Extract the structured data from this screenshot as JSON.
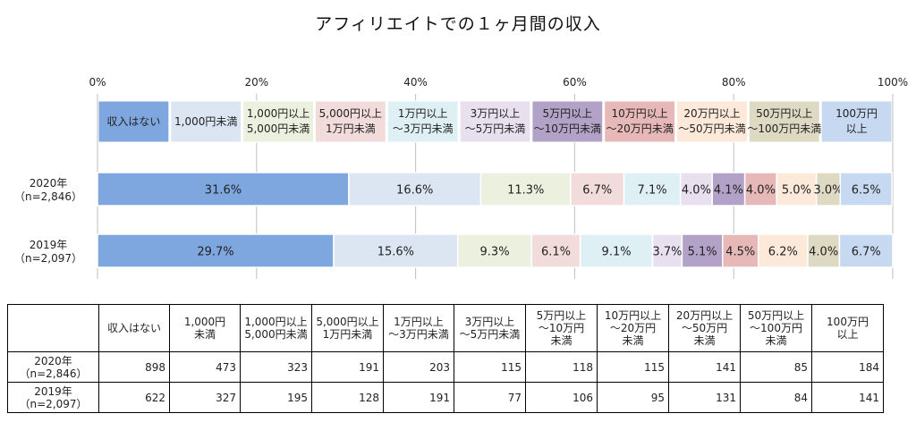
{
  "chart_data": {
    "type": "bar",
    "orientation": "horizontal",
    "stacked": "percent",
    "title": "アフィリエイトでの１ヶ月間の収入",
    "xaxis_ticks": [
      "0%",
      "20%",
      "40%",
      "60%",
      "80%",
      "100%"
    ],
    "xlim": [
      0,
      100
    ],
    "grid": true,
    "legend_position": "top",
    "series": [
      {
        "name": "収入はない",
        "label_lines": [
          "収入はない"
        ],
        "color": "#7fa7df",
        "values": [
          31.6,
          29.7
        ]
      },
      {
        "name": "1,000円未満",
        "label_lines": [
          "1,000円未満"
        ],
        "color": "#dce6f3",
        "values": [
          16.6,
          15.6
        ]
      },
      {
        "name": "1,000円以上5,000円未満",
        "label_lines": [
          "1,000円以上",
          "5,000円未満"
        ],
        "color": "#ebf1de",
        "values": [
          11.3,
          9.3
        ]
      },
      {
        "name": "5,000円以上1万円未満",
        "label_lines": [
          "5,000円以上",
          "1万円未満"
        ],
        "color": "#f2dcdb",
        "values": [
          6.7,
          6.1
        ]
      },
      {
        "name": "1万円以上～3万円未満",
        "label_lines": [
          "1万円以上",
          "～3万円未満"
        ],
        "color": "#def0f4",
        "values": [
          7.1,
          9.1
        ]
      },
      {
        "name": "3万円以上～5万円未満",
        "label_lines": [
          "3万円以上",
          "～5万円未満"
        ],
        "color": "#e8e0ee",
        "values": [
          4.0,
          3.7
        ]
      },
      {
        "name": "5万円以上～10万円未満",
        "label_lines": [
          "5万円以上",
          "～10万円未満"
        ],
        "color": "#b3a2c7",
        "values": [
          4.1,
          5.1
        ]
      },
      {
        "name": "10万円以上～20万円未満",
        "label_lines": [
          "10万円以上",
          "～20万円未満"
        ],
        "color": "#e6b9b8",
        "values": [
          4.0,
          4.5
        ]
      },
      {
        "name": "20万円以上～50万円未満",
        "label_lines": [
          "20万円以上",
          "～50万円未満"
        ],
        "color": "#fde9d9",
        "values": [
          5.0,
          6.2
        ]
      },
      {
        "name": "50万円以上～100万円未満",
        "label_lines": [
          "50万円以上",
          "～100万円未満"
        ],
        "color": "#ddd9c3",
        "values": [
          3.0,
          4.0
        ]
      },
      {
        "name": "100万円以上",
        "label_lines": [
          "100万円",
          "以上"
        ],
        "color": "#c6d9f1",
        "values": [
          6.5,
          6.7
        ]
      }
    ],
    "categories": [
      {
        "name": "2020年(n=2,846)",
        "lines": [
          "2020年",
          "（n=2,846）"
        ]
      },
      {
        "name": "2019年(n=2,097)",
        "lines": [
          "2019年",
          "（n=2,097）"
        ]
      }
    ],
    "value_labels": [
      [
        "31.6%",
        "16.6%",
        "11.3%",
        "6.7%",
        "7.1%",
        "4.0%",
        "4.1%",
        "4.0%",
        "5.0%",
        "3.0%",
        "6.5%"
      ],
      [
        "29.7%",
        "15.6%",
        "9.3%",
        "6.1%",
        "9.1%",
        "3.7%",
        "5.1%",
        "4.5%",
        "6.2%",
        "4.0%",
        "6.7%"
      ]
    ]
  },
  "table": {
    "headers": [
      {
        "lines": [
          "収入はない"
        ]
      },
      {
        "lines": [
          "1,000円",
          "未満"
        ]
      },
      {
        "lines": [
          "1,000円以上",
          "5,000円未満"
        ]
      },
      {
        "lines": [
          "5,000円以上",
          "1万円未満"
        ]
      },
      {
        "lines": [
          "1万円以上",
          "～3万円未満"
        ]
      },
      {
        "lines": [
          "3万円以上",
          "～5万円未満"
        ]
      },
      {
        "lines": [
          "5万円以上",
          "～10万円",
          "未満"
        ]
      },
      {
        "lines": [
          "10万円以上",
          "～20万円",
          "未満"
        ]
      },
      {
        "lines": [
          "20万円以上",
          "～50万円",
          "未満"
        ]
      },
      {
        "lines": [
          "50万円以上",
          "～100万円",
          "未満"
        ]
      },
      {
        "lines": [
          "100万円",
          "以上"
        ]
      }
    ],
    "rows": [
      {
        "label_lines": [
          "2020年",
          "（n=2,846）"
        ],
        "values": [
          "898",
          "473",
          "323",
          "191",
          "203",
          "115",
          "118",
          "115",
          "141",
          "85",
          "184"
        ]
      },
      {
        "label_lines": [
          "2019年",
          "（n=2,097）"
        ],
        "values": [
          "622",
          "327",
          "195",
          "128",
          "191",
          "77",
          "106",
          "95",
          "131",
          "84",
          "141"
        ]
      }
    ]
  }
}
